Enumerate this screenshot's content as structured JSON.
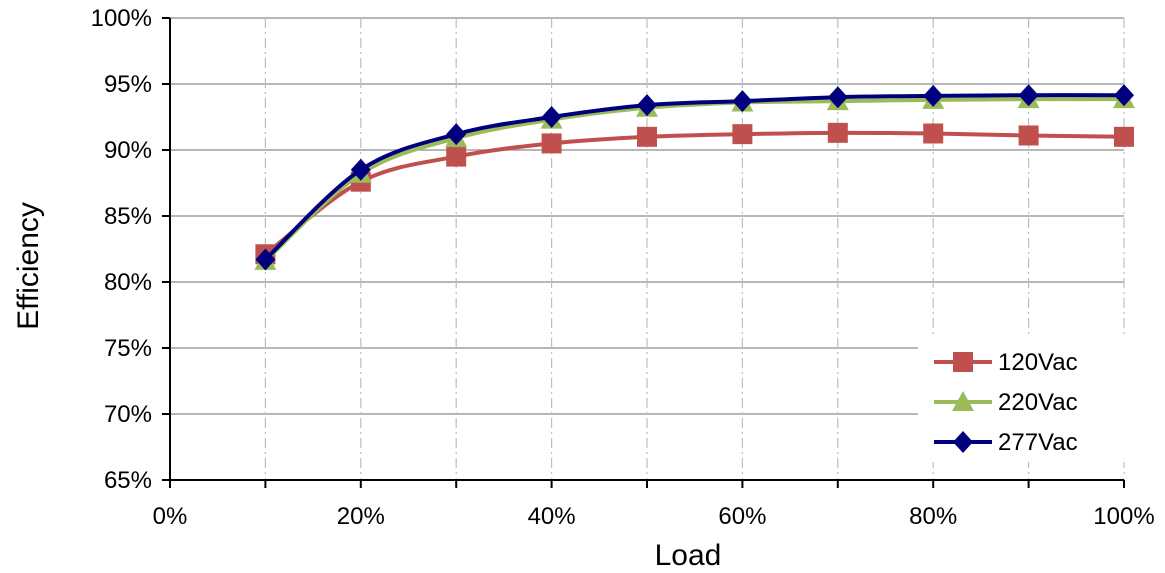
{
  "chart_data": {
    "type": "line",
    "title": "",
    "xlabel": "Load",
    "ylabel": "Efficiency",
    "xlim": [
      0,
      100
    ],
    "ylim": [
      65,
      100
    ],
    "x_ticks": [
      0,
      20,
      40,
      60,
      80,
      100
    ],
    "x_tick_labels": [
      "0%",
      "20%",
      "40%",
      "60%",
      "80%",
      "100%"
    ],
    "y_ticks": [
      65,
      70,
      75,
      80,
      85,
      90,
      95,
      100
    ],
    "y_tick_labels": [
      "65%",
      "70%",
      "75%",
      "80%",
      "85%",
      "90%",
      "95%",
      "100%"
    ],
    "grid": {
      "horizontal": "solid",
      "vertical_major": "dash-dot at 10% steps"
    },
    "legend_position": "bottom-right",
    "x": [
      10,
      20,
      30,
      40,
      50,
      60,
      70,
      80,
      90,
      100
    ],
    "series": [
      {
        "name": "120Vac",
        "marker": "square",
        "color": "#c0504d",
        "values": [
          82.1,
          87.6,
          89.5,
          90.5,
          91.0,
          91.2,
          91.3,
          91.25,
          91.1,
          91.0
        ]
      },
      {
        "name": "220Vac",
        "marker": "triangle",
        "color": "#9bbb59",
        "values": [
          81.6,
          88.2,
          90.9,
          92.3,
          93.2,
          93.6,
          93.7,
          93.8,
          93.85,
          93.85
        ]
      },
      {
        "name": "277Vac",
        "marker": "diamond",
        "color": "#00007f",
        "values": [
          81.7,
          88.5,
          91.2,
          92.5,
          93.4,
          93.7,
          94.0,
          94.1,
          94.15,
          94.15
        ]
      }
    ]
  }
}
